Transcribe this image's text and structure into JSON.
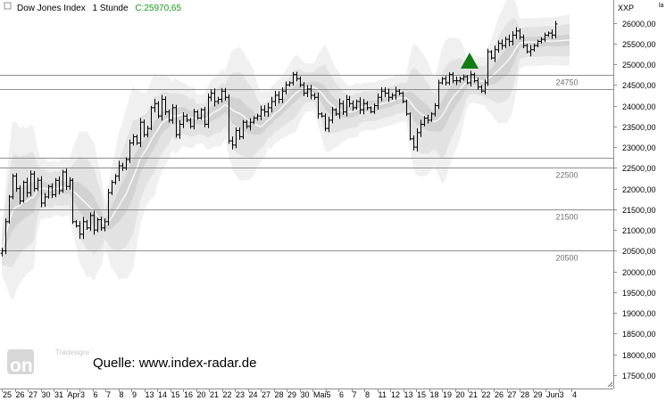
{
  "header": {
    "symbol": "Dow Jones Index",
    "timeframe": "1 Stunde",
    "close_label": "C:25970,65",
    "corner_label": "XXP",
    "corner_mark": "la"
  },
  "source": {
    "text": "Quelle: www.index-radar.de",
    "logo_small": "Tradesignal",
    "logo_main": "onLINE"
  },
  "chart_data": {
    "type": "ohlc",
    "ylim": [
      17300,
      26500
    ],
    "y_ticks": [
      {
        "value": 26000,
        "label": "26000,00"
      },
      {
        "value": 25500,
        "label": "25500,00"
      },
      {
        "value": 25000,
        "label": "25000,00"
      },
      {
        "value": 24500,
        "label": "24500,00"
      },
      {
        "value": 24000,
        "label": "24000,00"
      },
      {
        "value": 23500,
        "label": "23500,00"
      },
      {
        "value": 23000,
        "label": "23000,00"
      },
      {
        "value": 22500,
        "label": "22500,00"
      },
      {
        "value": 22000,
        "label": "22000,00"
      },
      {
        "value": 21500,
        "label": "21500,00"
      },
      {
        "value": 21000,
        "label": "21000,00"
      },
      {
        "value": 20500,
        "label": "20500,00"
      },
      {
        "value": 20000,
        "label": "20000,00"
      },
      {
        "value": 19500,
        "label": "19500,00"
      },
      {
        "value": 19000,
        "label": "19000,00"
      },
      {
        "value": 18500,
        "label": "18500,00"
      },
      {
        "value": 18000,
        "label": "18000,00"
      },
      {
        "value": 17500,
        "label": "17500,00"
      }
    ],
    "x_labels": [
      "25",
      "26",
      "27",
      "30",
      "31",
      "Apr",
      "3",
      "6",
      "7",
      "8",
      "9",
      "13",
      "14",
      "15",
      "16",
      "20",
      "21",
      "22",
      "23",
      "24",
      "27",
      "28",
      "29",
      "30",
      "Mai",
      "5",
      "6",
      "7",
      "8",
      "11",
      "12",
      "13",
      "15",
      "18",
      "19",
      "20",
      "21",
      "22",
      "26",
      "27",
      "28",
      "29",
      "Jun",
      "3",
      "4"
    ],
    "levels": [
      {
        "value": 24750,
        "label": "24750"
      },
      {
        "value": 24400,
        "label": ""
      },
      {
        "value": 22750,
        "label": ""
      },
      {
        "value": 22500,
        "label": "22500"
      },
      {
        "value": 21500,
        "label": "21500"
      },
      {
        "value": 20500,
        "label": "20500"
      }
    ],
    "signal": {
      "type": "buy-triangle",
      "value": 24980
    },
    "closes": [
      20500,
      21200,
      21800,
      22300,
      22000,
      21700,
      22150,
      21900,
      22350,
      22000,
      22200,
      21650,
      21800,
      22050,
      21850,
      22200,
      21950,
      22400,
      22050,
      22200,
      21200,
      21100,
      20900,
      21200,
      21050,
      21350,
      21000,
      21250,
      21050,
      21200,
      21900,
      22150,
      22300,
      22550,
      22500,
      22700,
      23100,
      23250,
      23100,
      23600,
      23300,
      23450,
      23950,
      24050,
      23750,
      24150,
      23850,
      23650,
      23950,
      23300,
      23550,
      23750,
      23650,
      23500,
      23850,
      23700,
      23900,
      23550,
      24200,
      24300,
      24100,
      24150,
      24350,
      24200,
      23150,
      23050,
      23400,
      23250,
      23600,
      23500,
      23600,
      23700,
      23750,
      23900,
      23850,
      23950,
      24100,
      24250,
      24150,
      24350,
      24500,
      24550,
      24750,
      24650,
      24500,
      24300,
      24400,
      24250,
      24200,
      23800,
      23750,
      23450,
      23650,
      23900,
      23800,
      24050,
      23850,
      24150,
      24050,
      23950,
      24100,
      23900,
      24050,
      23950,
      23850,
      24000,
      24200,
      24350,
      24300,
      24200,
      24250,
      24350,
      24300,
      24100,
      23800,
      23200,
      23000,
      23350,
      23550,
      23700,
      23650,
      23800,
      24000,
      24550,
      24650,
      24550,
      24750,
      24600,
      24600,
      24650,
      24700,
      24550,
      24750,
      24600,
      24450,
      24350,
      24550,
      25300,
      25150,
      25350,
      25500,
      25450,
      25600,
      25550,
      25700,
      25800,
      25650,
      25450,
      25300,
      25350,
      25450,
      25550,
      25600,
      25700,
      25750,
      25700,
      25970
    ],
    "grid": false,
    "price_axis_side": "right"
  }
}
